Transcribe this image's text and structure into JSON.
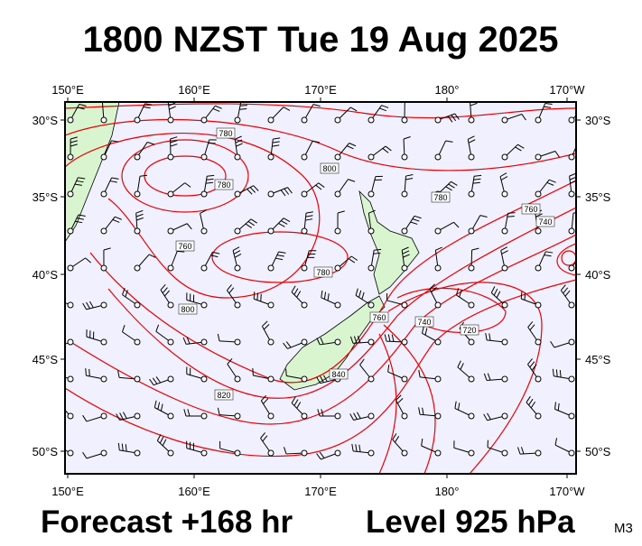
{
  "header": {
    "title": "1800 NZST Tue 19 Aug 2025"
  },
  "map": {
    "top_labels": [
      "150°E",
      "160°E",
      "170°E",
      "180°",
      "170°W"
    ],
    "bottom_labels": [
      "150°E",
      "160°E",
      "170°E",
      "180°",
      "170°W"
    ],
    "left_labels": [
      "30°S",
      "35°S",
      "40°S",
      "45°S",
      "50°S"
    ],
    "right_labels": [
      "30°S",
      "35°S",
      "40°S",
      "45°S",
      "50°S"
    ],
    "contour_labels": [
      "780",
      "780",
      "800",
      "780",
      "760",
      "740",
      "760",
      "780",
      "800",
      "820",
      "840",
      "760",
      "740",
      "720"
    ]
  },
  "footer": {
    "forecast": "Forecast +168 hr",
    "level": "Level 925 hPa",
    "model": "M3"
  }
}
